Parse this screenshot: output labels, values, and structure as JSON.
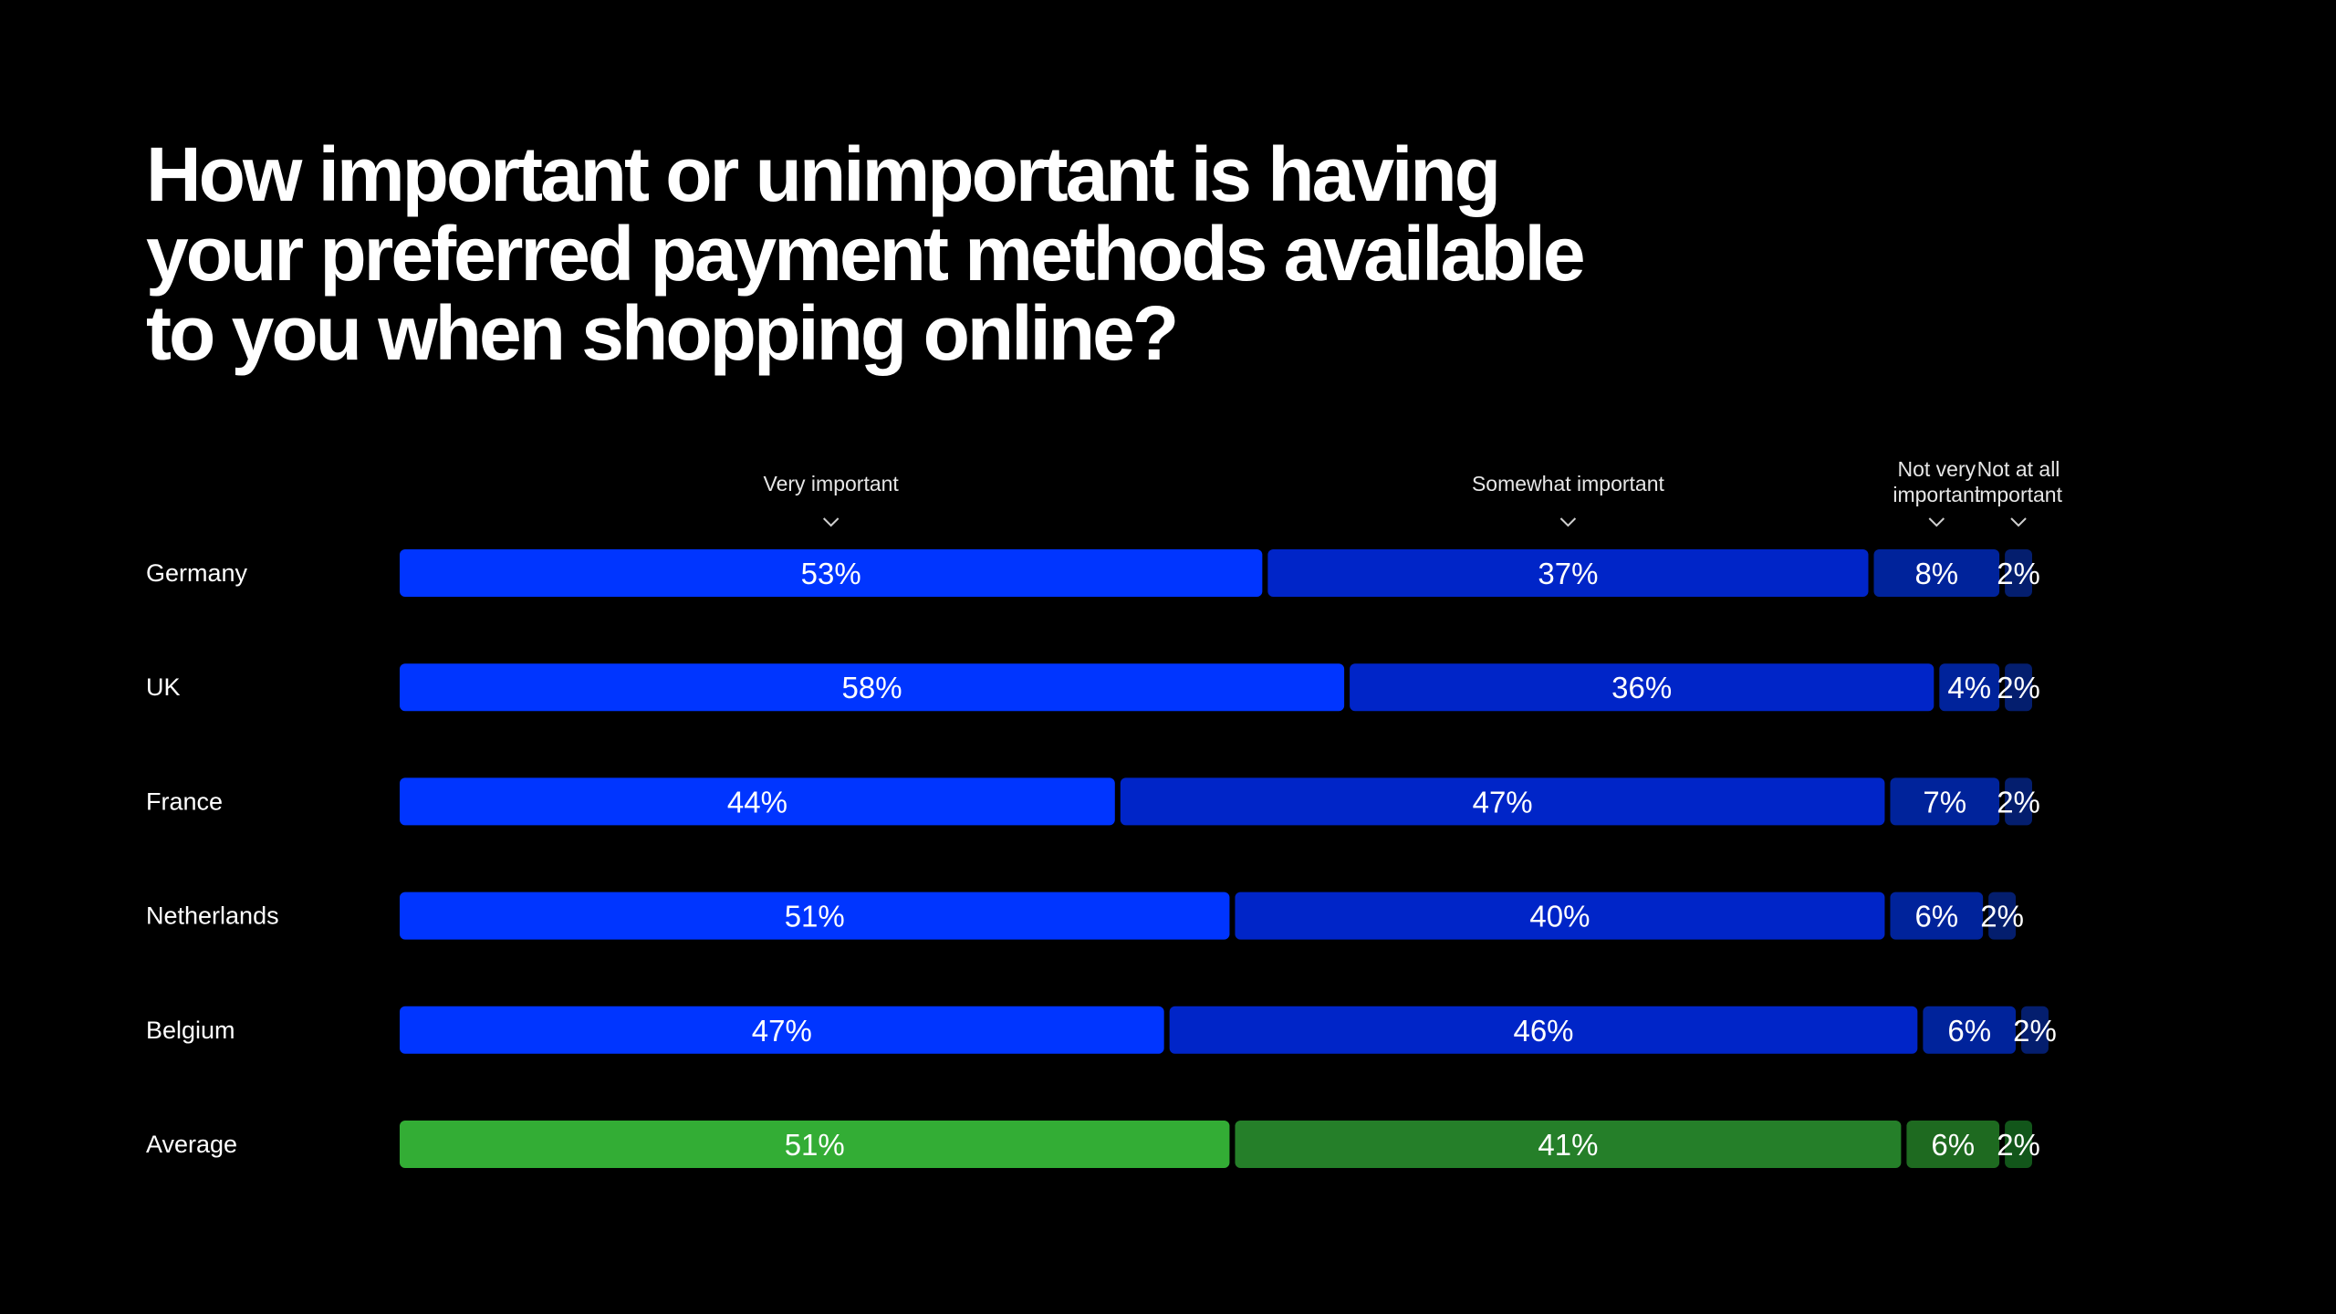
{
  "chart_data": {
    "type": "bar",
    "orientation": "horizontal",
    "stacked": true,
    "title": "How important or unimportant is having\nyour preferred payment methods available\nto you when shopping online?",
    "categories": [
      "Germany",
      "UK",
      "France",
      "Netherlands",
      "Belgium",
      "Average"
    ],
    "series": [
      {
        "name": "Very important",
        "values": [
          53,
          58,
          44,
          51,
          47,
          51
        ]
      },
      {
        "name": "Somewhat important",
        "values": [
          37,
          36,
          47,
          40,
          46,
          41
        ]
      },
      {
        "name": "Not very important",
        "values": [
          8,
          4,
          7,
          6,
          6,
          6
        ]
      },
      {
        "name": "Not at all important",
        "values": [
          2,
          2,
          2,
          2,
          2,
          2
        ]
      }
    ],
    "value_suffix": "%",
    "legend": "top",
    "grid": false,
    "xlim": [
      0,
      100
    ]
  },
  "colors": {
    "background": "#000000",
    "text": "#ffffff",
    "country_series": [
      "#0035ff",
      "#0025c8",
      "#00239b",
      "#041e6e"
    ],
    "average_series": [
      "#33ad35",
      "#257f29",
      "#1e6a20",
      "#12561a"
    ]
  }
}
